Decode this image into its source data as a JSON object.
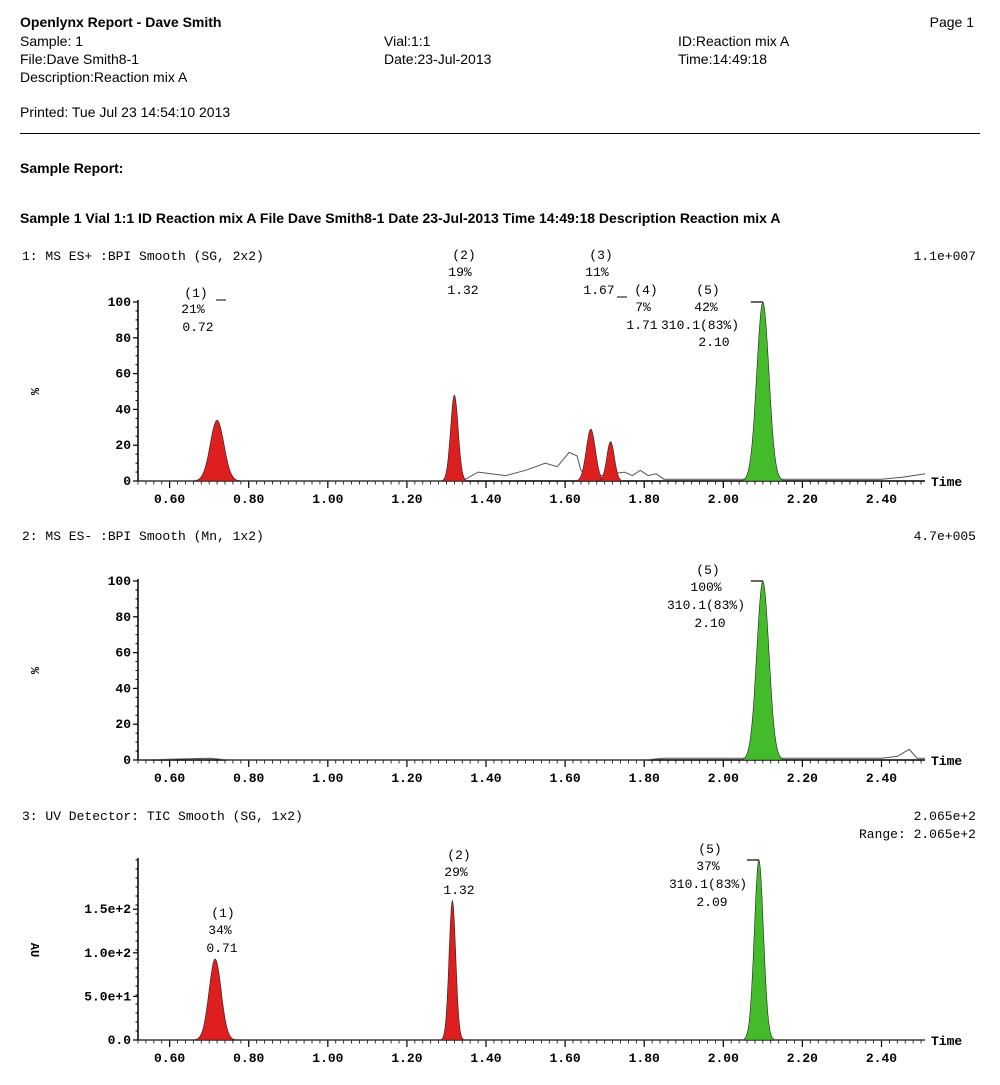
{
  "header": {
    "title": "Openlynx Report - Dave Smith",
    "page": "Page 1",
    "sample": "Sample: 1",
    "vial": "Vial:1:1",
    "id": "ID:Reaction mix A",
    "file": "File:Dave Smith8-1",
    "date": "Date:23-Jul-2013",
    "time": "Time:14:49:18",
    "description": "Description:Reaction mix A",
    "printed": "Printed: Tue Jul 23 14:54:10 2013"
  },
  "report": {
    "section_title": "Sample Report:",
    "sample_line": "Sample 1  Vial 1:1 ID Reaction mix A File Dave Smith8-1 Date 23-Jul-2013 Time 14:49:18 Description Reaction mix A"
  },
  "colors": {
    "red_peak": "#dd1f1f",
    "green_peak": "#44bb2a",
    "trace": "#555555"
  },
  "chart_data": [
    {
      "type": "area",
      "title": "1: MS ES+ :BPI Smooth (SG, 2x2)",
      "scale": "1.1e+007",
      "ylabel": "%",
      "xlabel": "Time",
      "xlim": [
        0.52,
        2.51
      ],
      "ylim": [
        0,
        100
      ],
      "x_ticks": [
        "0.60",
        "0.80",
        "1.00",
        "1.20",
        "1.40",
        "1.60",
        "1.80",
        "2.00",
        "2.20",
        "2.40"
      ],
      "y_ticks": [
        "0",
        "20",
        "40",
        "60",
        "80",
        "100"
      ],
      "baseline": [
        [
          0.52,
          0
        ],
        [
          1.34,
          0
        ],
        [
          1.38,
          5
        ],
        [
          1.45,
          3
        ],
        [
          1.5,
          6
        ],
        [
          1.55,
          10
        ],
        [
          1.58,
          8
        ],
        [
          1.61,
          16
        ],
        [
          1.63,
          14
        ],
        [
          1.64,
          6
        ],
        [
          1.66,
          2
        ],
        [
          1.75,
          5
        ],
        [
          1.77,
          3
        ],
        [
          1.79,
          6
        ],
        [
          1.81,
          3
        ],
        [
          1.83,
          4
        ],
        [
          1.85,
          1
        ],
        [
          2.07,
          1
        ],
        [
          2.12,
          1
        ],
        [
          2.2,
          1
        ],
        [
          2.4,
          1
        ],
        [
          2.45,
          2
        ],
        [
          2.48,
          3
        ],
        [
          2.51,
          4
        ]
      ],
      "peaks": [
        {
          "id": "(1)",
          "pct": "21%",
          "rt": "0.72",
          "x": 0.72,
          "height": 34,
          "width": 0.045,
          "color": "red"
        },
        {
          "id": "(2)",
          "pct": "19%",
          "rt": "1.32",
          "x": 1.32,
          "height": 48,
          "width": 0.025,
          "color": "red"
        },
        {
          "id": "(3)",
          "pct": "11%",
          "rt": "1.67",
          "x": 1.665,
          "height": 29,
          "width": 0.03,
          "color": "red"
        },
        {
          "id": "(4)",
          "pct": "7%",
          "rt": "1.71",
          "x": 1.715,
          "height": 22,
          "width": 0.025,
          "color": "red"
        },
        {
          "id": "(5)",
          "pct": "42%",
          "mass": "310.1(83%)",
          "rt": "2.10",
          "x": 2.1,
          "height": 100,
          "width": 0.04,
          "color": "green"
        }
      ]
    },
    {
      "type": "area",
      "title": "2: MS ES- :BPI Smooth (Mn, 1x2)",
      "scale": "4.7e+005",
      "ylabel": "%",
      "xlabel": "Time",
      "xlim": [
        0.52,
        2.51
      ],
      "ylim": [
        0,
        100
      ],
      "x_ticks": [
        "0.60",
        "0.80",
        "1.00",
        "1.20",
        "1.40",
        "1.60",
        "1.80",
        "2.00",
        "2.20",
        "2.40"
      ],
      "y_ticks": [
        "0",
        "20",
        "40",
        "60",
        "80",
        "100"
      ],
      "baseline": [
        [
          0.52,
          0
        ],
        [
          0.7,
          1
        ],
        [
          0.75,
          0
        ],
        [
          1.8,
          0
        ],
        [
          1.85,
          1
        ],
        [
          2.05,
          1
        ],
        [
          2.2,
          1
        ],
        [
          2.4,
          1
        ],
        [
          2.44,
          2
        ],
        [
          2.47,
          6
        ],
        [
          2.49,
          1
        ],
        [
          2.51,
          1
        ]
      ],
      "peaks": [
        {
          "id": "(5)",
          "pct": "100%",
          "mass": "310.1(83%)",
          "rt": "2.10",
          "x": 2.1,
          "height": 100,
          "width": 0.04,
          "color": "green"
        }
      ]
    },
    {
      "type": "area",
      "title": "3: UV Detector: TIC Smooth (SG, 1x2)",
      "scale": "2.065e+2",
      "range": "Range: 2.065e+2",
      "ylabel": "AU",
      "xlabel": "Time",
      "xlim": [
        0.52,
        2.51
      ],
      "ylim": [
        0,
        206.5
      ],
      "y_tick_values": [
        0,
        50,
        100,
        150
      ],
      "y_ticks": [
        "0.0",
        "5.0e+1",
        "1.0e+2",
        "1.5e+2"
      ],
      "x_ticks": [
        "0.60",
        "0.80",
        "1.00",
        "1.20",
        "1.40",
        "1.60",
        "1.80",
        "2.00",
        "2.20",
        "2.40"
      ],
      "baseline": [
        [
          0.52,
          0
        ],
        [
          2.51,
          0
        ]
      ],
      "peaks": [
        {
          "id": "(1)",
          "pct": "34%",
          "rt": "0.71",
          "x": 0.715,
          "height": 93,
          "width": 0.04,
          "color": "red"
        },
        {
          "id": "(2)",
          "pct": "29%",
          "rt": "1.32",
          "x": 1.315,
          "height": 160,
          "width": 0.022,
          "color": "red"
        },
        {
          "id": "(5)",
          "pct": "37%",
          "mass": "310.1(83%)",
          "rt": "2.09",
          "x": 2.09,
          "height": 206.5,
          "width": 0.03,
          "color": "green"
        }
      ]
    }
  ]
}
